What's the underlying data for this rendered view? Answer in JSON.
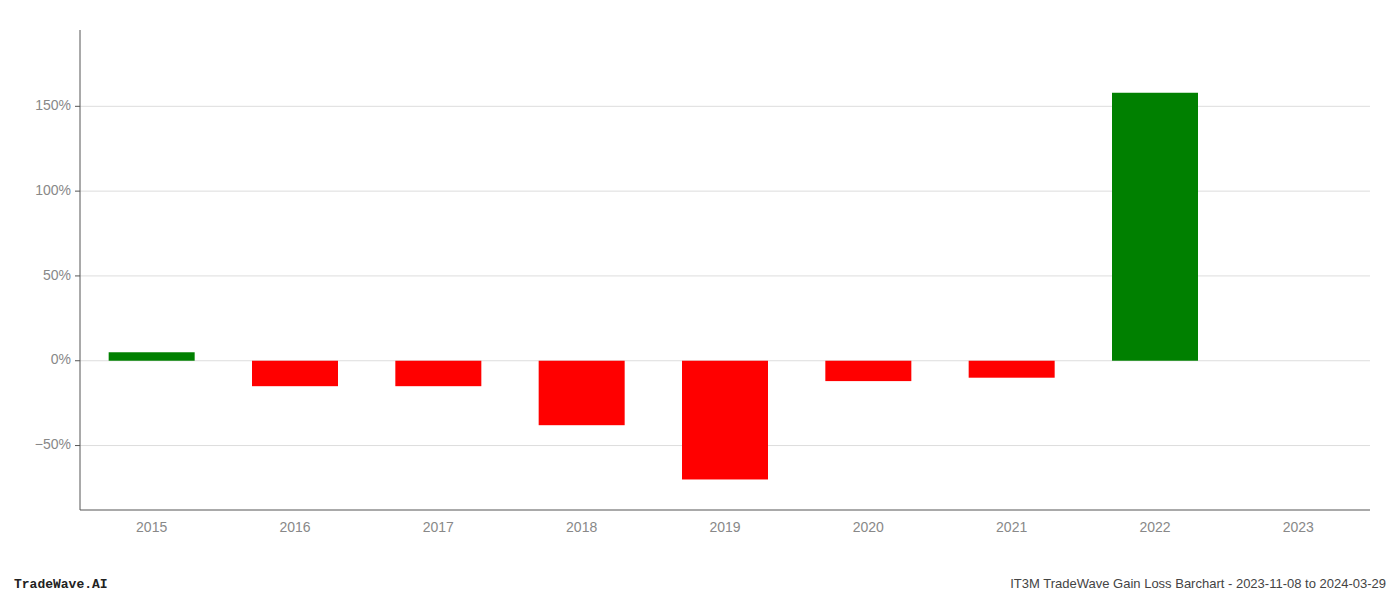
{
  "chart_data": {
    "type": "bar",
    "categories": [
      "2015",
      "2016",
      "2017",
      "2018",
      "2019",
      "2020",
      "2021",
      "2022",
      "2023"
    ],
    "values": [
      5.0,
      -15.0,
      -15.0,
      -38.0,
      -70.0,
      -12.0,
      -10.0,
      158.0,
      0.0
    ],
    "colors": [
      "#008000",
      "#ff0000",
      "#ff0000",
      "#ff0000",
      "#ff0000",
      "#ff0000",
      "#ff0000",
      "#008000",
      "#ffffff"
    ],
    "ylim": [
      -88,
      195
    ],
    "yticks": [
      {
        "value": -50,
        "label": "−50%"
      },
      {
        "value": 0,
        "label": "0%"
      },
      {
        "value": 50,
        "label": "50%"
      },
      {
        "value": 100,
        "label": "100%"
      },
      {
        "value": 150,
        "label": "150%"
      }
    ],
    "grid": true,
    "annotations": [
      "TradeWave.AI",
      "IT3M TradeWave Gain Loss Barchart - 2023-11-08 to 2024-03-29"
    ]
  }
}
